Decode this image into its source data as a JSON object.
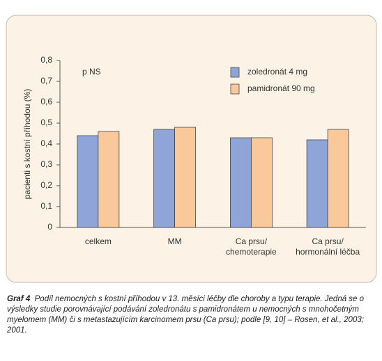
{
  "chart_data": {
    "type": "bar",
    "y_label": "pacienti s kostní příhodou (%)",
    "annotation": "p NS",
    "categories": [
      "celkem",
      "MM",
      "Ca prsu/\nchemoterapie",
      "Ca prsu/\nhormonální léčba"
    ],
    "series": [
      {
        "name": "zoledronát 4 mg",
        "color": "#8fa5d8",
        "values": [
          0.44,
          0.47,
          0.43,
          0.42
        ]
      },
      {
        "name": "pamidronát 90 mg",
        "color": "#f9c99b",
        "values": [
          0.46,
          0.48,
          0.43,
          0.47
        ]
      }
    ],
    "ylim": [
      0,
      0.8
    ],
    "yticks": [
      {
        "value": 0,
        "label": "0"
      },
      {
        "value": 0.1,
        "label": "0,1"
      },
      {
        "value": 0.2,
        "label": "0,2"
      },
      {
        "value": 0.3,
        "label": "0,3"
      },
      {
        "value": 0.4,
        "label": "0,4"
      },
      {
        "value": 0.5,
        "label": "0,5"
      },
      {
        "value": 0.6,
        "label": "0,6"
      },
      {
        "value": 0.7,
        "label": "0,7"
      },
      {
        "value": 0.8,
        "label": "0,8"
      }
    ],
    "grid": false
  },
  "caption": {
    "label": "Graf 4",
    "text": "Podíl nemocných s kostní příhodou v 13. měsíci léčby dle choroby a typu terapie. Jedná se o výsledky studie porovnávající podávání zoledronátu s pamidronátem u nemocných s mnohočetným myelomem (MM) či s metastazujícím karcinomem prsu (Ca prsu); podle [9, 10] – Rosen, et al., 2003; 2001."
  }
}
